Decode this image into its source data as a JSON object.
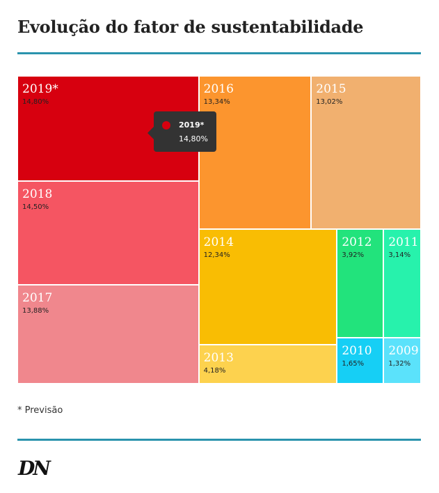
{
  "title": "Evolução do fator de sustentabilidade",
  "chart_data": {
    "type": "treemap",
    "title": "Evolução do fator de sustentabilidade",
    "items": [
      {
        "name": "2019*",
        "value": 14.8,
        "label": "14,80%",
        "color": "#d7000f"
      },
      {
        "name": "2018",
        "value": 14.5,
        "label": "14,50%",
        "color": "#f55562"
      },
      {
        "name": "2017",
        "value": 13.88,
        "label": "13,88%",
        "color": "#f0878d"
      },
      {
        "name": "2016",
        "value": 13.34,
        "label": "13,34%",
        "color": "#fc952e"
      },
      {
        "name": "2015",
        "value": 13.02,
        "label": "13,02%",
        "color": "#f1b06f"
      },
      {
        "name": "2014",
        "value": 12.34,
        "label": "12,34%",
        "color": "#f9bd03"
      },
      {
        "name": "2013",
        "value": 4.18,
        "label": "4,18%",
        "color": "#fdd24e"
      },
      {
        "name": "2012",
        "value": 3.92,
        "label": "3,92%",
        "color": "#22e37c"
      },
      {
        "name": "2011",
        "value": 3.14,
        "label": "3,14%",
        "color": "#27f2ac"
      },
      {
        "name": "2010",
        "value": 1.65,
        "label": "1,65%",
        "color": "#16cff5"
      },
      {
        "name": "2009",
        "value": 1.32,
        "label": "1,32%",
        "color": "#5be2fb"
      }
    ]
  },
  "tooltip": {
    "label": "2019*",
    "value": "14,80%",
    "color": "#d7000f"
  },
  "footnote": "* Previsão",
  "logo": "DN",
  "colors": {
    "rule": "#2a93ad"
  }
}
